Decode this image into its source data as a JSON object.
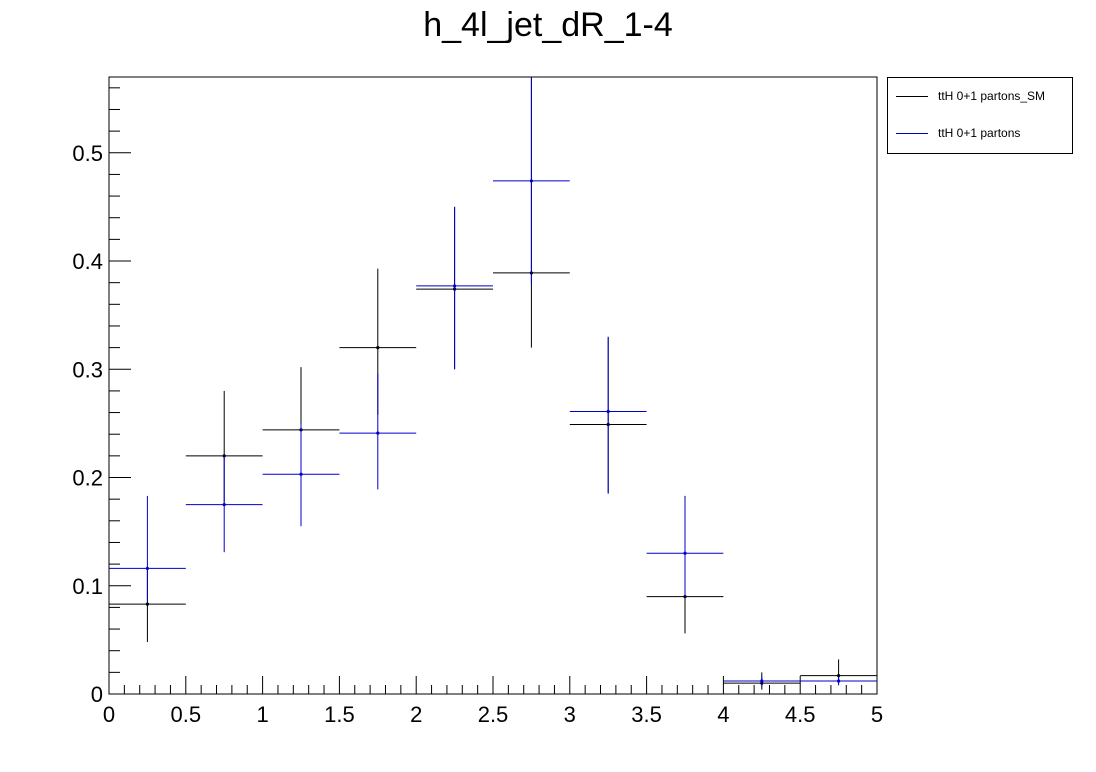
{
  "title": "h_4l_jet_dR_1-4",
  "colors": {
    "sm": "#000000",
    "bsm": "#0000cc"
  },
  "legend": {
    "placement": "outside-top-right",
    "entries": [
      {
        "label": "ttH 0+1 partons_SM",
        "color": "#000000"
      },
      {
        "label": "ttH 0+1 partons",
        "color": "#0000cc"
      }
    ]
  },
  "chart_data": {
    "type": "scatter",
    "title": "h_4l_jet_dR_1-4",
    "xlabel": "",
    "ylabel": "",
    "xlim": [
      0,
      5
    ],
    "ylim": [
      0,
      0.57
    ],
    "x_ticks": [
      "0",
      "0.5",
      "1",
      "1.5",
      "2",
      "2.5",
      "3",
      "3.5",
      "4",
      "4.5",
      "5"
    ],
    "y_ticks": [
      "0",
      "0.1",
      "0.2",
      "0.3",
      "0.4",
      "0.5"
    ],
    "grid": false,
    "bins": [
      [
        0,
        0.5
      ],
      [
        0.5,
        1
      ],
      [
        1,
        1.5
      ],
      [
        1.5,
        2
      ],
      [
        2,
        2.5
      ],
      [
        2.5,
        3
      ],
      [
        3,
        3.5
      ],
      [
        3.5,
        4
      ],
      [
        4,
        4.5
      ],
      [
        4.5,
        5
      ]
    ],
    "series": [
      {
        "name": "ttH 0+1 partons_SM",
        "color": "#000000",
        "values": [
          0.083,
          0.22,
          0.244,
          0.32,
          0.374,
          0.389,
          0.249,
          0.09,
          0.01,
          0.017
        ],
        "err_low": [
          0.035,
          0.043,
          0.052,
          0.062,
          0.074,
          0.069,
          0.063,
          0.034,
          0.006,
          0.007
        ],
        "err_high": [
          0.035,
          0.06,
          0.058,
          0.073,
          0.076,
          0.181,
          0.081,
          0.093,
          0.01,
          0.015
        ]
      },
      {
        "name": "ttH 0+1 partons",
        "color": "#0000cc",
        "values": [
          0.116,
          0.175,
          0.203,
          0.241,
          0.377,
          0.474,
          0.261,
          0.13,
          0.012,
          0.012
        ],
        "err_low": [
          0.03,
          0.044,
          0.048,
          0.052,
          0.077,
          0.095,
          0.076,
          0.041,
          0.005,
          0.004
        ],
        "err_high": [
          0.067,
          0.045,
          0.047,
          0.055,
          0.073,
          0.096,
          0.068,
          0.052,
          0.004,
          0.004
        ]
      }
    ]
  }
}
